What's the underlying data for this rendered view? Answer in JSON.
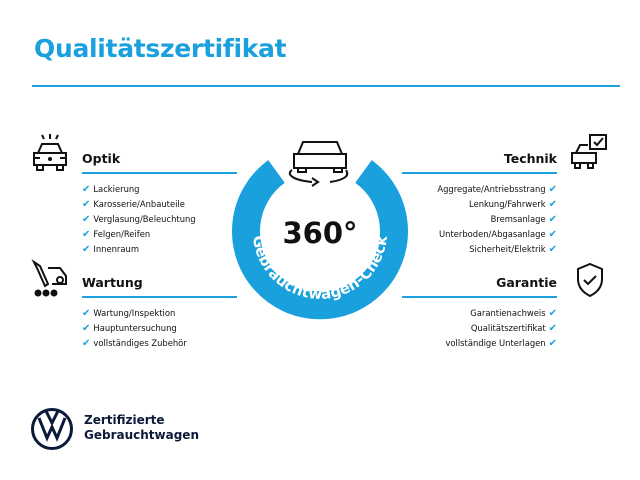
{
  "title": "Qualitätszertifikat",
  "center": {
    "big": "360°",
    "ring_text": "Gebrauchtwagen-Check",
    "ring_color": "#1aa1dd"
  },
  "sections": {
    "optik": {
      "heading": "Optik",
      "items": [
        "Lackierung",
        "Karosserie/Anbauteile",
        "Verglasung/Beleuchtung",
        "Felgen/Reifen",
        "Innenraum"
      ]
    },
    "wartung": {
      "heading": "Wartung",
      "items": [
        "Wartung/Inspektion",
        "Hauptuntersuchung",
        "vollständiges Zubehör"
      ]
    },
    "technik": {
      "heading": "Technik",
      "items": [
        "Aggregate/Antriebsstrang",
        "Lenkung/Fahrwerk",
        "Bremsanlage",
        "Unterboden/Abgasanlage",
        "Sicherheit/Elektrik"
      ]
    },
    "garantie": {
      "heading": "Garantie",
      "items": [
        "Garantienachweis",
        "Qualitätszertifikat",
        "vollständige Unterlagen"
      ]
    }
  },
  "check_glyph": "✔",
  "brand": {
    "line1": "Zertifizierte",
    "line2": "Gebrauchtwagen",
    "logo": "VW"
  }
}
